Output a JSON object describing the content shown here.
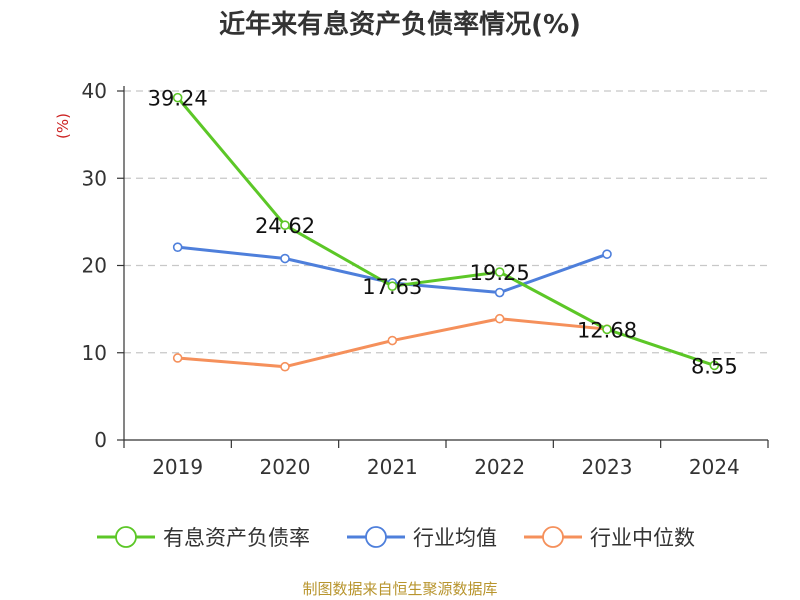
{
  "chart_data": {
    "type": "line",
    "title": "近年来有息资产负债率情况(%)",
    "ylabel": "(%)",
    "categories": [
      "2019",
      "2020",
      "2021",
      "2022",
      "2023",
      "2024"
    ],
    "ylim": [
      0,
      40
    ],
    "yticks": [
      0,
      10,
      20,
      30,
      40
    ],
    "grid": "horizontal dashed",
    "legend_position": "bottom",
    "series": [
      {
        "name": "有息资产负债率",
        "color": "#5cc727",
        "values": [
          39.24,
          24.62,
          17.63,
          19.25,
          12.68,
          8.55
        ],
        "labels": true
      },
      {
        "name": "行业均值",
        "color": "#4e7fdb",
        "values": [
          22.1,
          20.8,
          18.0,
          16.9,
          21.3,
          null
        ],
        "labels": false
      },
      {
        "name": "行业中位数",
        "color": "#f5905b",
        "values": [
          9.4,
          8.4,
          11.4,
          13.9,
          12.7,
          null
        ],
        "labels": false
      }
    ]
  },
  "source": "制图数据来自恒生聚源数据库"
}
